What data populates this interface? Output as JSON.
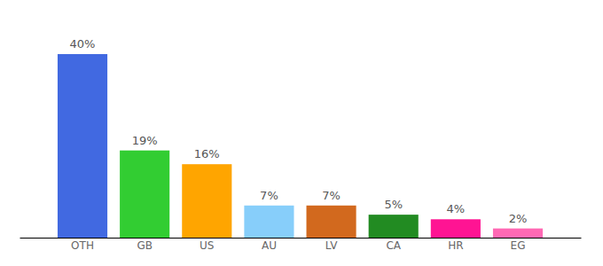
{
  "chart_data": {
    "type": "bar",
    "categories": [
      "OTH",
      "GB",
      "US",
      "AU",
      "LV",
      "CA",
      "HR",
      "EG"
    ],
    "values": [
      40,
      19,
      16,
      7,
      7,
      5,
      4,
      2
    ],
    "value_labels": [
      "40%",
      "19%",
      "16%",
      "7%",
      "7%",
      "5%",
      "4%",
      "2%"
    ],
    "colors": [
      "#4169e1",
      "#32cd32",
      "#ffa500",
      "#87cefa",
      "#d2691e",
      "#228b22",
      "#ff1493",
      "#ff69b4"
    ],
    "ylim": [
      0,
      40
    ],
    "data_labels": true,
    "tick_labels": "x",
    "grid": false
  }
}
